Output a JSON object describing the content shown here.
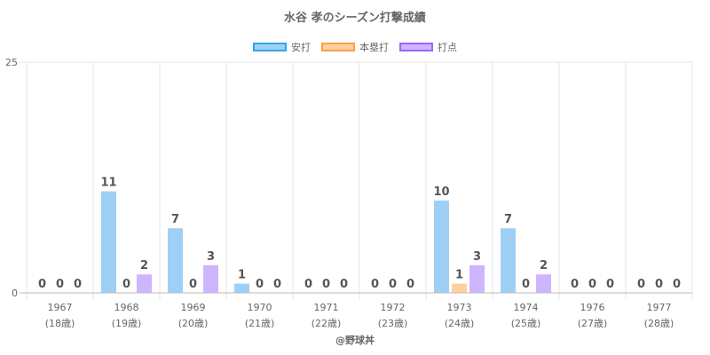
{
  "chart_data": {
    "type": "bar",
    "title": "水谷 孝のシーズン打撃成績",
    "categories": [
      "1967",
      "1968",
      "1969",
      "1970",
      "1971",
      "1972",
      "1973",
      "1974",
      "1976",
      "1977"
    ],
    "age_labels": [
      "(18歳)",
      "(19歳)",
      "(20歳)",
      "(21歳)",
      "(22歳)",
      "(23歳)",
      "(24歳)",
      "(25歳)",
      "(27歳)",
      "(28歳)"
    ],
    "series": [
      {
        "name": "安打",
        "fill": "#9ed0f5",
        "border": "#36a2eb",
        "values": [
          0,
          11,
          7,
          1,
          0,
          0,
          10,
          7,
          0,
          0
        ]
      },
      {
        "name": "本塁打",
        "fill": "#ffcf9f",
        "border": "#ff9f40",
        "values": [
          0,
          0,
          0,
          0,
          0,
          0,
          1,
          0,
          0,
          0
        ]
      },
      {
        "name": "打点",
        "fill": "#cfb4fe",
        "border": "#9966ff",
        "values": [
          0,
          2,
          3,
          0,
          0,
          0,
          3,
          2,
          0,
          0
        ]
      }
    ],
    "ylim": [
      0,
      25
    ],
    "y_ticks": [
      "0",
      "25"
    ],
    "grid": true,
    "legend_position": "top"
  },
  "credit": "@野球丼"
}
